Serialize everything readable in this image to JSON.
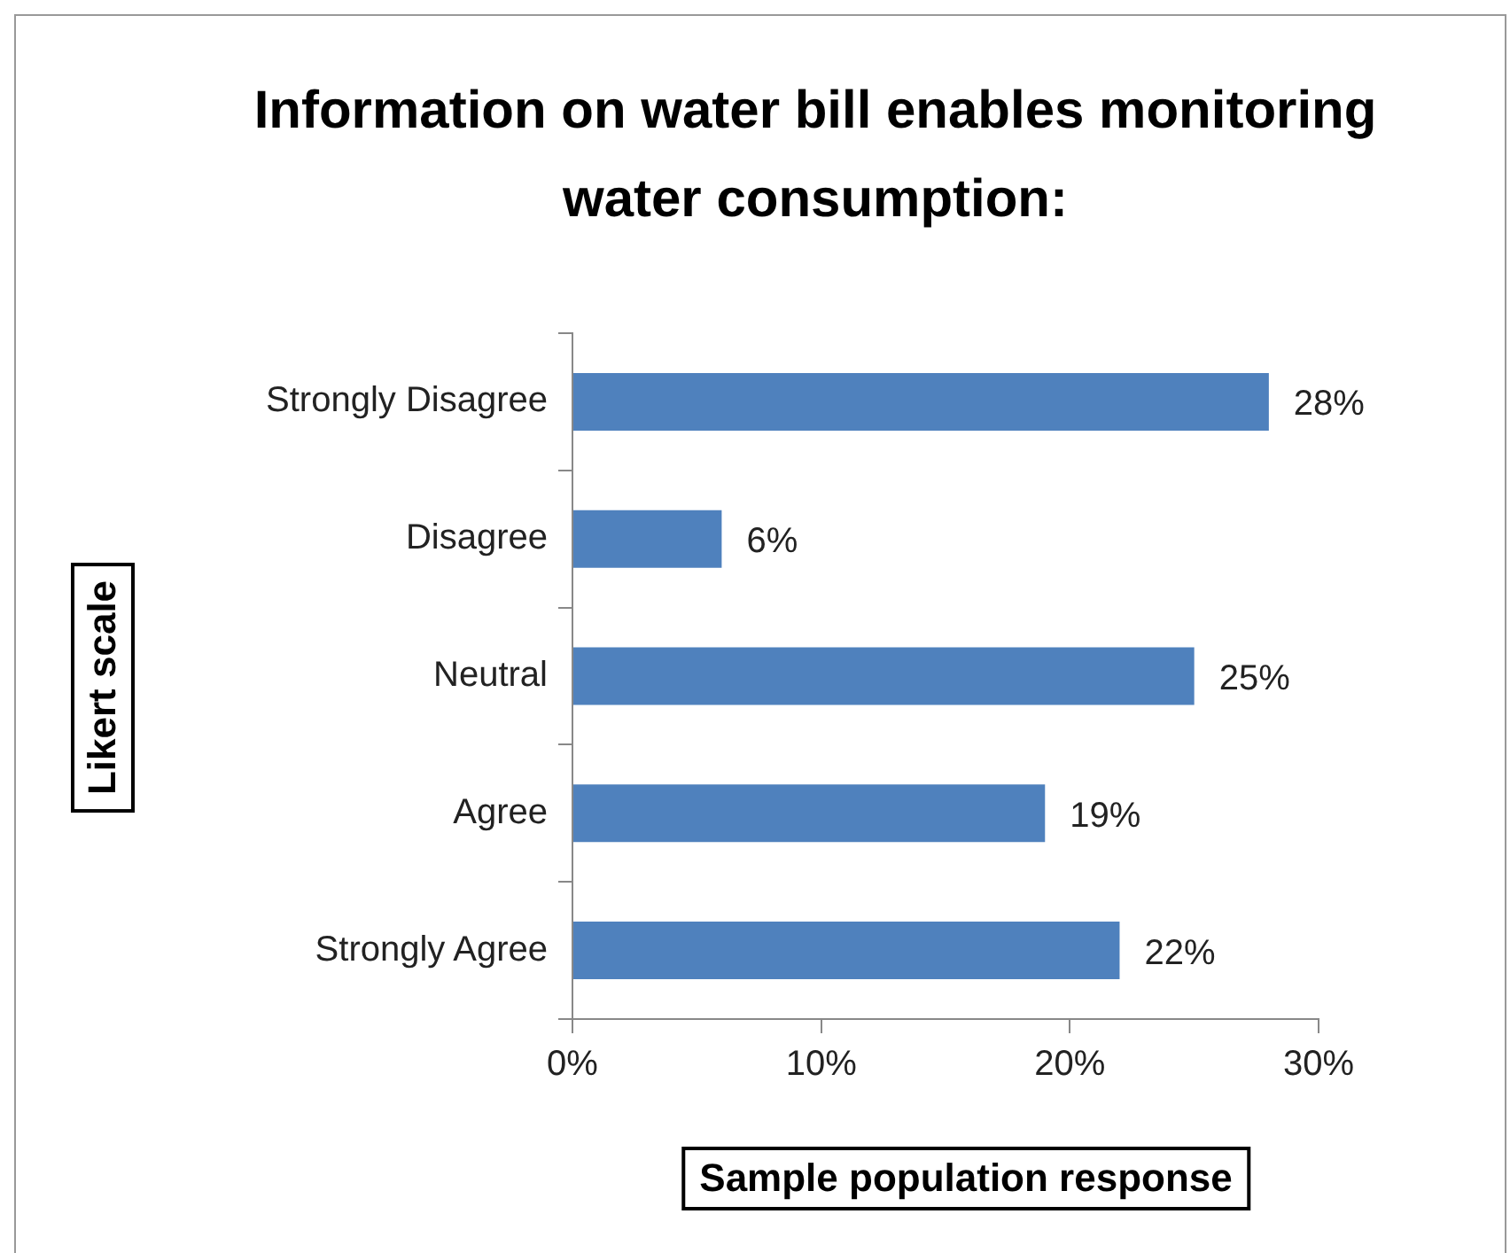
{
  "chart_data": {
    "type": "bar",
    "orientation": "horizontal",
    "title": "Information on water bill enables monitoring water consumption:",
    "xlabel": "Sample population response",
    "ylabel": "Likert scale",
    "categories": [
      "Strongly Disagree",
      "Disagree",
      "Neutral",
      "Agree",
      "Strongly Agree"
    ],
    "values": [
      28,
      6,
      25,
      19,
      22
    ],
    "value_labels": [
      "28%",
      "6%",
      "25%",
      "19%",
      "22%"
    ],
    "color": "#4f81bd",
    "xlim": [
      0,
      30
    ],
    "xticks": [
      {
        "value": 0,
        "label": "0%"
      },
      {
        "value": 10,
        "label": "10%"
      },
      {
        "value": 20,
        "label": "20%"
      },
      {
        "value": 30,
        "label": "30%"
      }
    ]
  }
}
